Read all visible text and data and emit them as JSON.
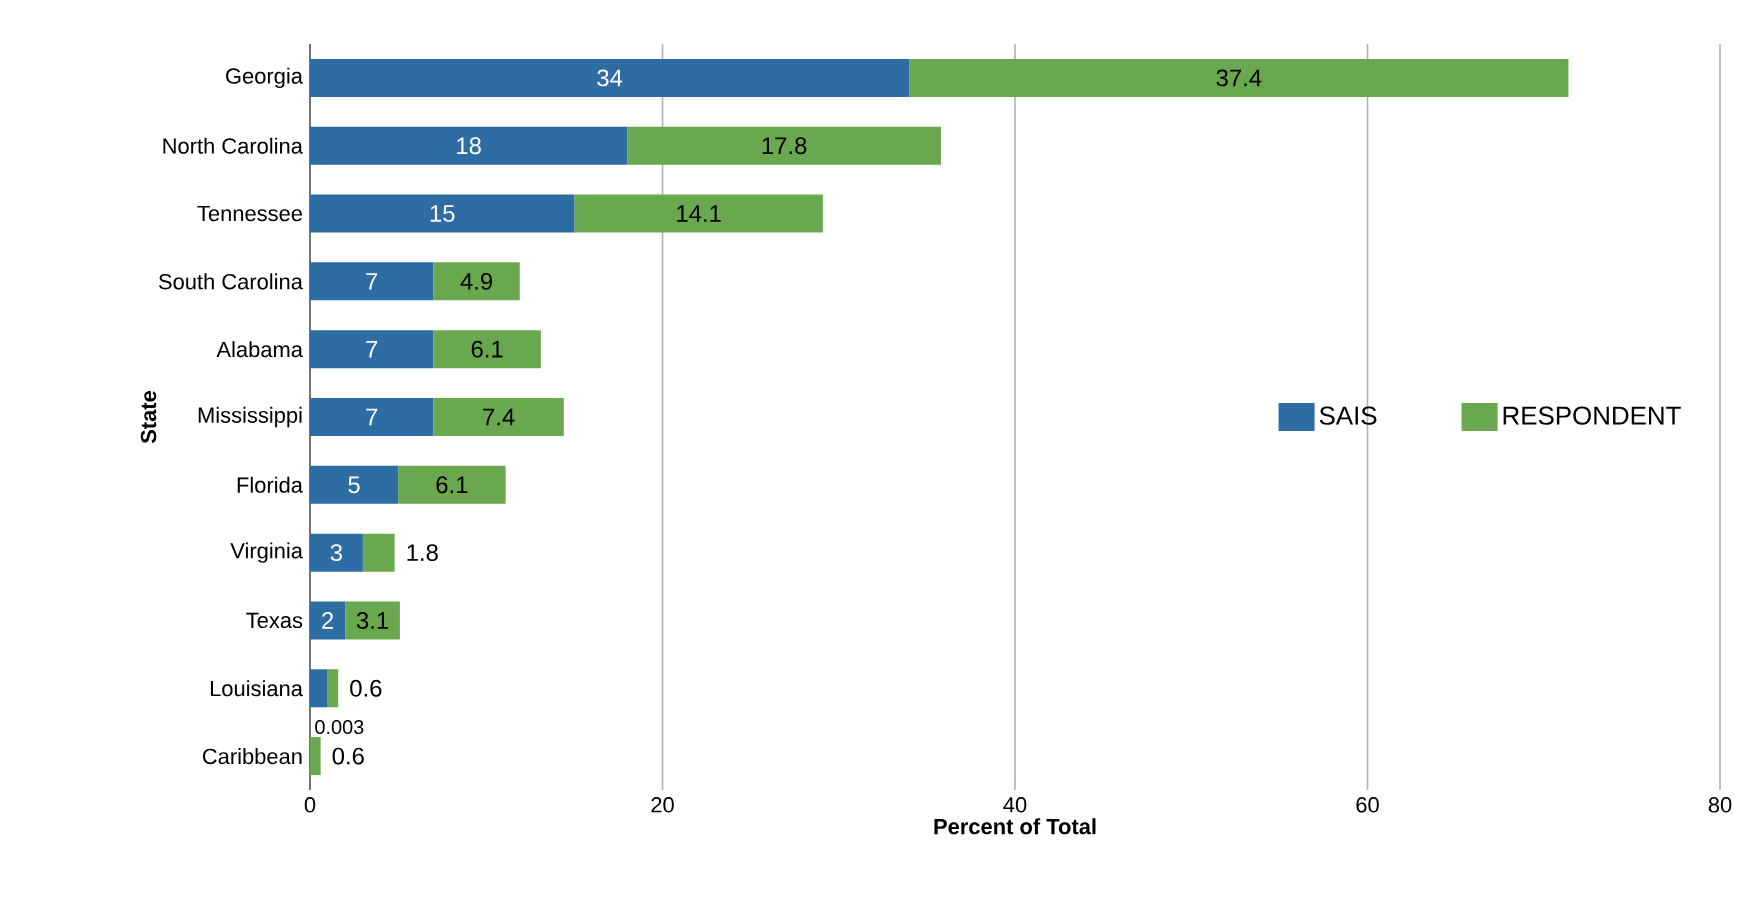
{
  "chart_data": {
    "type": "bar",
    "orientation": "horizontal",
    "stacked": true,
    "xlabel": "Percent of Total",
    "ylabel": "State",
    "categories": [
      "Georgia",
      "North Carolina",
      "Tennessee",
      "South Carolina",
      "Alabama",
      "Mississippi",
      "Florida",
      "Virginia",
      "Texas",
      "Louisiana",
      "Caribbean"
    ],
    "series": [
      {
        "name": "SAIS",
        "color": "#2e6da4",
        "values": [
          34,
          18,
          15,
          7,
          7,
          7,
          5,
          3,
          2,
          1,
          0.003
        ],
        "value_labels": [
          "34",
          "18",
          "15",
          "7",
          "7",
          "7",
          "5",
          "3",
          "2",
          null,
          "0.003"
        ]
      },
      {
        "name": "RESPONDENT",
        "color": "#6aa84f",
        "values": [
          37.4,
          17.8,
          14.1,
          4.9,
          6.1,
          7.4,
          6.1,
          1.8,
          3.1,
          0.6,
          0.6
        ],
        "value_labels": [
          "37.4",
          "17.8",
          "14.1",
          "4.9",
          "6.1",
          "7.4",
          "6.1",
          "1.8",
          "3.1",
          "0.6",
          "0.6"
        ]
      }
    ],
    "xlim": [
      0,
      80
    ],
    "xticks": [
      0,
      20,
      40,
      60,
      80
    ],
    "grid": "x",
    "legend": "right"
  }
}
